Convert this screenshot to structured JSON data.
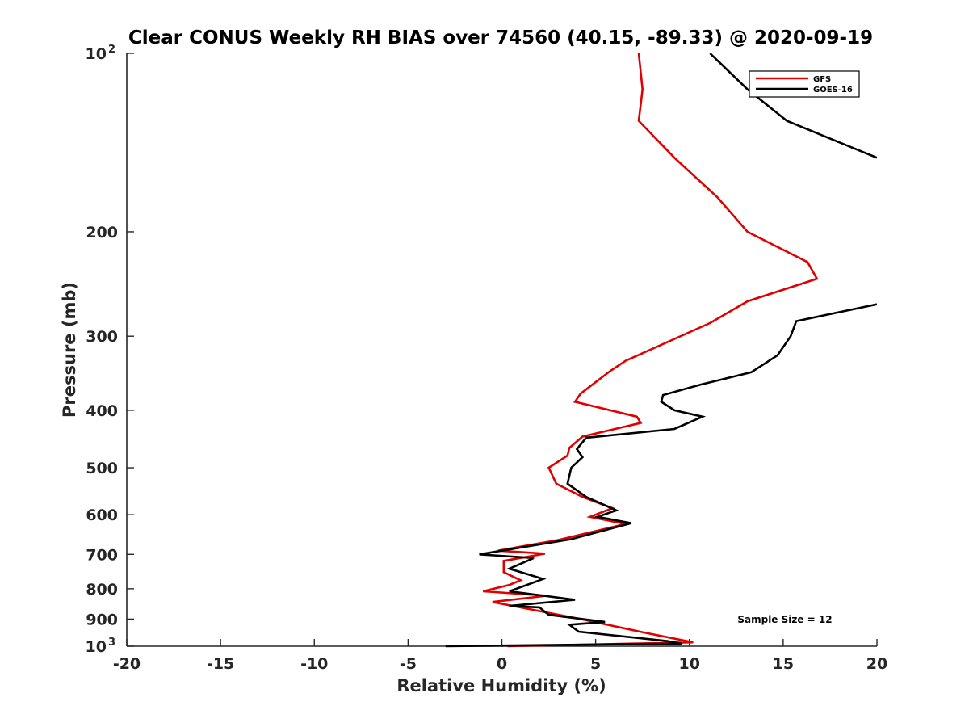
{
  "colors": {
    "gfs": "#e00000",
    "goes": "#000000",
    "axis": "#262626"
  },
  "chart_data": {
    "type": "line",
    "title": "Clear CONUS Weekly RH BIAS over 74560 (40.15, -89.33) @ 2020-09-19",
    "xlabel": "Relative Humidity (%)",
    "ylabel": "Pressure (mb)",
    "xlim": [
      -20,
      20
    ],
    "ylim": [
      100,
      1000
    ],
    "yscale": "log",
    "y_reversed": true,
    "grid": false,
    "legend_position": "top-right",
    "annotation": "Sample Size = 12",
    "xticks": [
      {
        "value": -20,
        "label": "-20"
      },
      {
        "value": -15,
        "label": "-15"
      },
      {
        "value": -10,
        "label": "-10"
      },
      {
        "value": -5,
        "label": "-5"
      },
      {
        "value": 0,
        "label": "0"
      },
      {
        "value": 5,
        "label": "5"
      },
      {
        "value": 10,
        "label": "10"
      },
      {
        "value": 15,
        "label": "15"
      },
      {
        "value": 20,
        "label": "20"
      }
    ],
    "yticks": [
      {
        "value": 100,
        "label": "10",
        "exp": "2"
      },
      {
        "value": 200,
        "label": "200"
      },
      {
        "value": 300,
        "label": "300"
      },
      {
        "value": 400,
        "label": "400"
      },
      {
        "value": 500,
        "label": "500"
      },
      {
        "value": 600,
        "label": "600"
      },
      {
        "value": 700,
        "label": "700"
      },
      {
        "value": 800,
        "label": "800"
      },
      {
        "value": 900,
        "label": "900"
      },
      {
        "value": 1000,
        "label": "10",
        "exp": "3"
      }
    ],
    "series": [
      {
        "name": "GFS",
        "color_key": "gfs",
        "points": [
          [
            7.3,
            100
          ],
          [
            7.5,
            115
          ],
          [
            7.3,
            130
          ],
          [
            9.2,
            150
          ],
          [
            11.5,
            175
          ],
          [
            13.1,
            200
          ],
          [
            16.3,
            225
          ],
          [
            16.8,
            240
          ],
          [
            13.1,
            262
          ],
          [
            11.1,
            285
          ],
          [
            6.6,
            330
          ],
          [
            5.8,
            343
          ],
          [
            4.2,
            375
          ],
          [
            3.9,
            387
          ],
          [
            7.2,
            410
          ],
          [
            7.4,
            420
          ],
          [
            4.3,
            443
          ],
          [
            3.6,
            463
          ],
          [
            3.5,
            477
          ],
          [
            2.5,
            500
          ],
          [
            2.9,
            532
          ],
          [
            4.3,
            560
          ],
          [
            5.9,
            585
          ],
          [
            4.7,
            605
          ],
          [
            6.6,
            622
          ],
          [
            3.0,
            662
          ],
          [
            -0.2,
            690
          ],
          [
            2.3,
            698
          ],
          [
            0.1,
            718
          ],
          [
            0.1,
            750
          ],
          [
            1.0,
            774
          ],
          [
            0.4,
            788
          ],
          [
            -1.0,
            808
          ],
          [
            2.4,
            822
          ],
          [
            -0.5,
            842
          ],
          [
            4.2,
            900
          ],
          [
            7.7,
            950
          ],
          [
            10.2,
            985
          ],
          [
            0.3,
            1000
          ]
        ]
      },
      {
        "name": "GOES-16",
        "color_key": "goes",
        "points": [
          [
            11.1,
            100
          ],
          [
            13.1,
            115
          ],
          [
            15.2,
            130
          ],
          [
            20.0,
            150
          ],
          null,
          [
            20.0,
            265
          ],
          [
            15.7,
            283
          ],
          [
            15.4,
            300
          ],
          [
            14.7,
            323
          ],
          [
            13.3,
            345
          ],
          [
            10.6,
            362
          ],
          [
            8.6,
            377
          ],
          [
            8.5,
            387
          ],
          [
            9.2,
            400
          ],
          [
            10.7,
            410
          ],
          [
            9.2,
            430
          ],
          [
            4.5,
            445
          ],
          [
            4.0,
            465
          ],
          [
            4.3,
            480
          ],
          [
            3.7,
            500
          ],
          [
            3.5,
            532
          ],
          [
            4.5,
            560
          ],
          [
            6.1,
            590
          ],
          [
            5.1,
            605
          ],
          [
            6.9,
            620
          ],
          [
            3.7,
            660
          ],
          [
            -1.2,
            700
          ],
          [
            1.7,
            710
          ],
          [
            0.4,
            740
          ],
          [
            2.2,
            770
          ],
          [
            0.4,
            808
          ],
          [
            3.9,
            835
          ],
          [
            0.4,
            855
          ],
          [
            2.0,
            860
          ],
          [
            2.5,
            885
          ],
          [
            5.5,
            910
          ],
          [
            3.6,
            920
          ],
          [
            4.1,
            945
          ],
          [
            8.8,
            980
          ],
          [
            9.6,
            990
          ],
          [
            -3.0,
            1000
          ]
        ]
      }
    ]
  }
}
